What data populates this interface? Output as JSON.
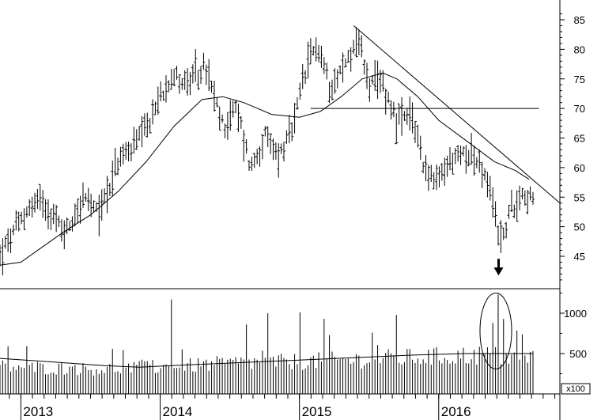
{
  "chart_data": [
    {
      "type": "ohlc",
      "title": "",
      "xlabel": "",
      "ylabel": "",
      "ylim": [
        40,
        87
      ],
      "y_ticks": [
        "45",
        "50",
        "55",
        "60",
        "65",
        "70",
        "75",
        "80",
        "85"
      ],
      "x_ticks": [
        "2013",
        "2014",
        "2015",
        "2016"
      ],
      "grid": false,
      "series": [
        {
          "style": "weekly price bars",
          "anchors": [
            {
              "t": 2012.85,
              "y": 45
            },
            {
              "t": 2012.95,
              "y": 49
            },
            {
              "t": 2013.05,
              "y": 53
            },
            {
              "t": 2013.15,
              "y": 55
            },
            {
              "t": 2013.25,
              "y": 51
            },
            {
              "t": 2013.32,
              "y": 49
            },
            {
              "t": 2013.45,
              "y": 55
            },
            {
              "t": 2013.55,
              "y": 52
            },
            {
              "t": 2013.7,
              "y": 61
            },
            {
              "t": 2013.9,
              "y": 66
            },
            {
              "t": 2014.0,
              "y": 72
            },
            {
              "t": 2014.08,
              "y": 76
            },
            {
              "t": 2014.2,
              "y": 74
            },
            {
              "t": 2014.32,
              "y": 77
            },
            {
              "t": 2014.45,
              "y": 67
            },
            {
              "t": 2014.55,
              "y": 70
            },
            {
              "t": 2014.65,
              "y": 60
            },
            {
              "t": 2014.75,
              "y": 65
            },
            {
              "t": 2014.85,
              "y": 62
            },
            {
              "t": 2014.95,
              "y": 66
            },
            {
              "t": 2015.03,
              "y": 75
            },
            {
              "t": 2015.12,
              "y": 81
            },
            {
              "t": 2015.22,
              "y": 74
            },
            {
              "t": 2015.32,
              "y": 77
            },
            {
              "t": 2015.42,
              "y": 82
            },
            {
              "t": 2015.5,
              "y": 74
            },
            {
              "t": 2015.6,
              "y": 74
            },
            {
              "t": 2015.7,
              "y": 68
            },
            {
              "t": 2015.82,
              "y": 68
            },
            {
              "t": 2015.9,
              "y": 60
            },
            {
              "t": 2015.98,
              "y": 57
            },
            {
              "t": 2016.08,
              "y": 61
            },
            {
              "t": 2016.22,
              "y": 63
            },
            {
              "t": 2016.32,
              "y": 59
            },
            {
              "t": 2016.4,
              "y": 53
            },
            {
              "t": 2016.45,
              "y": 47
            },
            {
              "t": 2016.5,
              "y": 52
            },
            {
              "t": 2016.6,
              "y": 56
            },
            {
              "t": 2016.68,
              "y": 54
            }
          ]
        },
        {
          "style": "moving average line",
          "points": [
            {
              "t": 2012.85,
              "y": 43.5
            },
            {
              "t": 2013.0,
              "y": 44
            },
            {
              "t": 2013.15,
              "y": 46.5
            },
            {
              "t": 2013.3,
              "y": 49
            },
            {
              "t": 2013.5,
              "y": 52
            },
            {
              "t": 2013.7,
              "y": 56
            },
            {
              "t": 2013.9,
              "y": 61
            },
            {
              "t": 2014.1,
              "y": 67
            },
            {
              "t": 2014.3,
              "y": 71.5
            },
            {
              "t": 2014.45,
              "y": 72
            },
            {
              "t": 2014.6,
              "y": 71
            },
            {
              "t": 2014.8,
              "y": 69
            },
            {
              "t": 2015.0,
              "y": 68.5
            },
            {
              "t": 2015.15,
              "y": 69.5
            },
            {
              "t": 2015.3,
              "y": 72
            },
            {
              "t": 2015.45,
              "y": 75
            },
            {
              "t": 2015.6,
              "y": 76
            },
            {
              "t": 2015.7,
              "y": 75
            },
            {
              "t": 2015.85,
              "y": 72
            },
            {
              "t": 2016.0,
              "y": 68
            },
            {
              "t": 2016.2,
              "y": 64.5
            },
            {
              "t": 2016.4,
              "y": 61
            },
            {
              "t": 2016.55,
              "y": 59.5
            },
            {
              "t": 2016.65,
              "y": 58
            }
          ]
        }
      ],
      "annotations": [
        {
          "type": "horizontal line",
          "y": 70,
          "from_t": 2015.08,
          "to_t": 2016.72
        },
        {
          "type": "downtrend line",
          "from": {
            "t": 2015.39,
            "y": 84
          },
          "to": {
            "t": 2016.87,
            "y": 54
          }
        },
        {
          "type": "down arrow",
          "t": 2016.43,
          "y": 43.5
        }
      ]
    },
    {
      "type": "bar",
      "title": "",
      "xlabel": "",
      "ylabel": "",
      "units": "x100",
      "ylim": [
        0,
        1400
      ],
      "y_ticks": [
        "500",
        "1000"
      ],
      "series": [
        {
          "style": "weekly volume bars",
          "baseline_levels": [
            {
              "t": 2012.85,
              "v": 330
            },
            {
              "t": 2013.5,
              "v": 300
            },
            {
              "t": 2014.0,
              "v": 320
            },
            {
              "t": 2014.5,
              "v": 370
            },
            {
              "t": 2015.0,
              "v": 390
            },
            {
              "t": 2015.5,
              "v": 420
            },
            {
              "t": 2016.0,
              "v": 450
            },
            {
              "t": 2016.3,
              "v": 470
            },
            {
              "t": 2016.68,
              "v": 420
            }
          ],
          "spikes": [
            {
              "t": 2014.08,
              "v": 1170
            },
            {
              "t": 2014.78,
              "v": 1000
            },
            {
              "t": 2015.0,
              "v": 1010
            },
            {
              "t": 2015.18,
              "v": 930
            },
            {
              "t": 2015.7,
              "v": 980
            },
            {
              "t": 2016.42,
              "v": 1230
            },
            {
              "t": 2016.46,
              "v": 930
            },
            {
              "t": 2016.38,
              "v": 880
            },
            {
              "t": 2014.62,
              "v": 860
            },
            {
              "t": 2013.95,
              "v": 420
            },
            {
              "t": 2015.52,
              "v": 760
            }
          ]
        },
        {
          "style": "volume moving average",
          "points": [
            {
              "t": 2012.85,
              "v": 440
            },
            {
              "t": 2013.2,
              "v": 400
            },
            {
              "t": 2013.6,
              "v": 350
            },
            {
              "t": 2013.85,
              "v": 330
            },
            {
              "t": 2014.2,
              "v": 360
            },
            {
              "t": 2014.6,
              "v": 390
            },
            {
              "t": 2015.0,
              "v": 420
            },
            {
              "t": 2015.4,
              "v": 450
            },
            {
              "t": 2015.8,
              "v": 480
            },
            {
              "t": 2016.2,
              "v": 500
            },
            {
              "t": 2016.68,
              "v": 500
            }
          ]
        }
      ],
      "annotations": [
        {
          "type": "ellipse",
          "t_center": 2016.41,
          "v_center": 780,
          "note": "circled volume spike"
        }
      ]
    }
  ]
}
